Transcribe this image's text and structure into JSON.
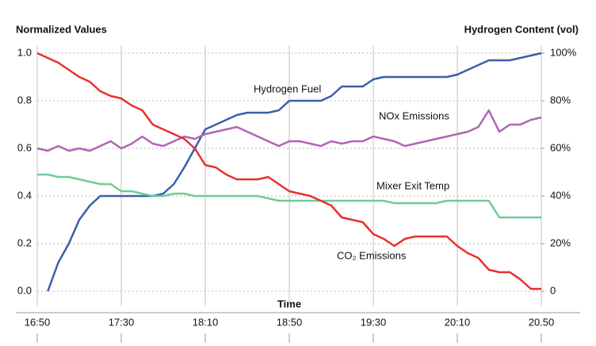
{
  "chart_data": {
    "type": "line",
    "y_axis_label": "Normalized Values",
    "y2_axis_label": "Hydrogen Content (vol)",
    "x_axis_label": "Time",
    "x": [
      1010,
      1015,
      1020,
      1025,
      1030,
      1035,
      1040,
      1045,
      1050,
      1055,
      1060,
      1065,
      1070,
      1075,
      1080,
      1085,
      1090,
      1095,
      1100,
      1105,
      1110,
      1115,
      1120,
      1125,
      1130,
      1135,
      1140,
      1145,
      1150,
      1155,
      1160,
      1165,
      1170,
      1175,
      1180,
      1185,
      1190,
      1195,
      1200,
      1205,
      1210,
      1215,
      1220,
      1225,
      1230,
      1235,
      1240,
      1245,
      1250
    ],
    "xlim": [
      1010,
      1250
    ],
    "xticks": [
      {
        "value": 1010,
        "label": "16:50"
      },
      {
        "value": 1050,
        "label": "17:30"
      },
      {
        "value": 1090,
        "label": "18:10"
      },
      {
        "value": 1130,
        "label": "18:50"
      },
      {
        "value": 1170,
        "label": "19:30"
      },
      {
        "value": 1210,
        "label": "20:10"
      },
      {
        "value": 1250,
        "label": "20.50"
      }
    ],
    "ylim": [
      0,
      1
    ],
    "yticks": [
      {
        "value": 0,
        "label": "0.0"
      },
      0.2,
      0.4,
      0.6,
      0.8,
      {
        "value": 1,
        "label": "1.0"
      }
    ],
    "y2lim": [
      0,
      100
    ],
    "y2ticks": [
      {
        "value": 0,
        "label": "0"
      },
      {
        "value": 20,
        "label": "20%"
      },
      {
        "value": 40,
        "label": "40%"
      },
      {
        "value": 60,
        "label": "60%"
      },
      {
        "value": 80,
        "label": "80%"
      },
      {
        "value": 100,
        "label": "100%"
      }
    ],
    "grid": true,
    "series": [
      {
        "name": "Hydrogen Fuel",
        "color": "#3a5fab",
        "axis": "y2",
        "values": [
          null,
          0,
          12,
          20,
          30,
          36,
          40,
          40,
          40,
          40,
          40,
          40,
          41,
          45,
          52,
          60,
          68,
          70,
          72,
          74,
          75,
          75,
          75,
          76,
          80,
          80,
          80,
          80,
          82,
          86,
          86,
          86,
          89,
          90,
          90,
          90,
          90,
          90,
          90,
          90,
          91,
          93,
          95,
          97,
          97,
          97,
          98,
          99,
          100
        ]
      },
      {
        "name": "NOx Emissions",
        "color": "#b065b5",
        "values": [
          0.6,
          0.59,
          0.61,
          0.59,
          0.6,
          0.59,
          0.61,
          0.63,
          0.6,
          0.62,
          0.65,
          0.62,
          0.61,
          0.63,
          0.65,
          0.64,
          0.66,
          0.67,
          0.68,
          0.69,
          0.67,
          0.65,
          0.63,
          0.61,
          0.63,
          0.63,
          0.62,
          0.61,
          0.63,
          0.62,
          0.63,
          0.63,
          0.65,
          0.64,
          0.63,
          0.61,
          0.62,
          0.63,
          0.64,
          0.65,
          0.66,
          0.67,
          0.69,
          0.76,
          0.67,
          0.7,
          0.7,
          0.72,
          0.73
        ]
      },
      {
        "name": "Mixer Exit Temp",
        "color": "#6fcc97",
        "values": [
          0.49,
          0.49,
          0.48,
          0.48,
          0.47,
          0.46,
          0.45,
          0.45,
          0.42,
          0.42,
          0.41,
          0.4,
          0.4,
          0.41,
          0.41,
          0.4,
          0.4,
          0.4,
          0.4,
          0.4,
          0.4,
          0.4,
          0.39,
          0.38,
          0.38,
          0.38,
          0.38,
          0.38,
          0.38,
          0.38,
          0.38,
          0.38,
          0.38,
          0.38,
          0.37,
          0.37,
          0.37,
          0.37,
          0.37,
          0.38,
          0.38,
          0.38,
          0.38,
          0.38,
          0.31,
          0.31,
          0.31,
          0.31,
          0.31
        ]
      },
      {
        "name": "CO₂ Emissions",
        "color": "#e8312a",
        "values": [
          1.0,
          0.98,
          0.96,
          0.93,
          0.9,
          0.88,
          0.84,
          0.82,
          0.81,
          0.78,
          0.76,
          0.7,
          0.68,
          0.66,
          0.64,
          0.6,
          0.53,
          0.52,
          0.49,
          0.47,
          0.47,
          0.47,
          0.48,
          0.45,
          0.42,
          0.41,
          0.4,
          0.38,
          0.36,
          0.31,
          0.3,
          0.29,
          0.24,
          0.22,
          0.19,
          0.22,
          0.23,
          0.23,
          0.23,
          0.23,
          0.19,
          0.16,
          0.14,
          0.09,
          0.08,
          0.08,
          0.05,
          0.01,
          0.01
        ]
      }
    ]
  }
}
